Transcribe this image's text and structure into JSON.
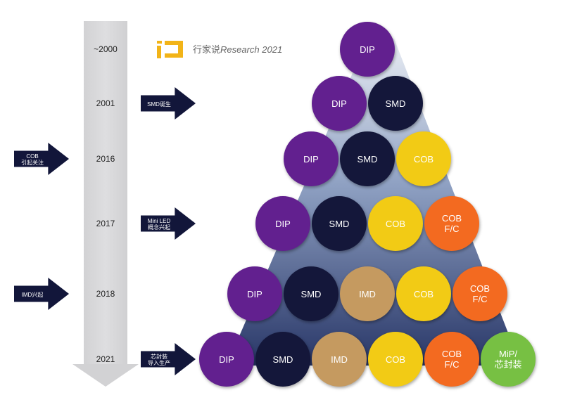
{
  "watermark": {
    "cjk": "行家说",
    "latin": "Research 2021"
  },
  "timeline": {
    "years": [
      {
        "label": "~2000",
        "events": []
      },
      {
        "label": "2001",
        "events": [
          {
            "side": "right",
            "text": "SMD诞生"
          }
        ]
      },
      {
        "label": "2016",
        "events": [
          {
            "side": "left",
            "text": "COB\n引起关注"
          }
        ]
      },
      {
        "label": "2017",
        "events": [
          {
            "side": "right",
            "text": "Mini LED\n概念兴起"
          }
        ]
      },
      {
        "label": "2018",
        "events": [
          {
            "side": "left",
            "text": "IMD兴起"
          }
        ]
      },
      {
        "label": "2021",
        "events": [
          {
            "side": "right",
            "text": "芯封装\n导入生产"
          }
        ]
      }
    ]
  },
  "pyramid": {
    "rows": [
      [
        "DIP"
      ],
      [
        "DIP",
        "SMD"
      ],
      [
        "DIP",
        "SMD",
        "COB"
      ],
      [
        "DIP",
        "SMD",
        "COB",
        "COB\nF/C"
      ],
      [
        "DIP",
        "SMD",
        "IMD",
        "COB",
        "COB\nF/C"
      ],
      [
        "DIP",
        "SMD",
        "IMD",
        "COB",
        "COB\nF/C",
        "MiP/\n芯封装"
      ]
    ]
  },
  "colors": {
    "DIP": "#62208f",
    "SMD": "#14173a",
    "IMD": "#c59a60",
    "COB": "#f2cb15",
    "COB\nF/C": "#f36a20",
    "MiP/\n芯封装": "#77c043",
    "arrow": "#12163a",
    "timeline": "#d2d2d4"
  }
}
